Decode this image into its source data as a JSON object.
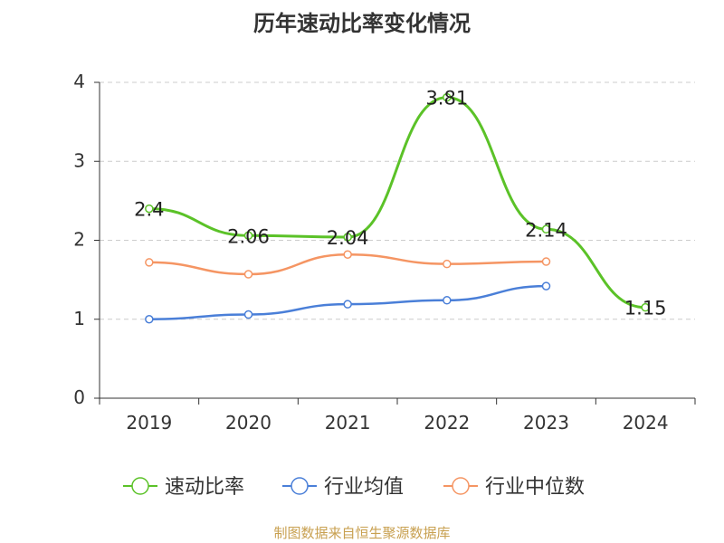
{
  "chart_data": {
    "type": "line",
    "title": "历年速动比率变化情况",
    "categories": [
      "2019",
      "2020",
      "2021",
      "2022",
      "2023",
      "2024"
    ],
    "yticks": [
      "0",
      "1",
      "2",
      "3",
      "4"
    ],
    "ylim": [
      0,
      4
    ],
    "grid": true,
    "legend_position": "bottom",
    "series": [
      {
        "name": "速动比率",
        "color": "#5bc228",
        "values": [
          2.4,
          2.06,
          2.04,
          3.81,
          2.14,
          1.15
        ],
        "labels": [
          "2.4",
          "2.06",
          "2.04",
          "3.81",
          "2.14",
          "1.15"
        ]
      },
      {
        "name": "行业均值",
        "color": "#4a7fd8",
        "values": [
          1.0,
          1.06,
          1.19,
          1.24,
          1.42,
          null
        ]
      },
      {
        "name": "行业中位数",
        "color": "#f59563",
        "values": [
          1.72,
          1.57,
          1.82,
          1.7,
          1.73,
          null
        ]
      }
    ]
  },
  "source": "制图数据来自恒生聚源数据库"
}
